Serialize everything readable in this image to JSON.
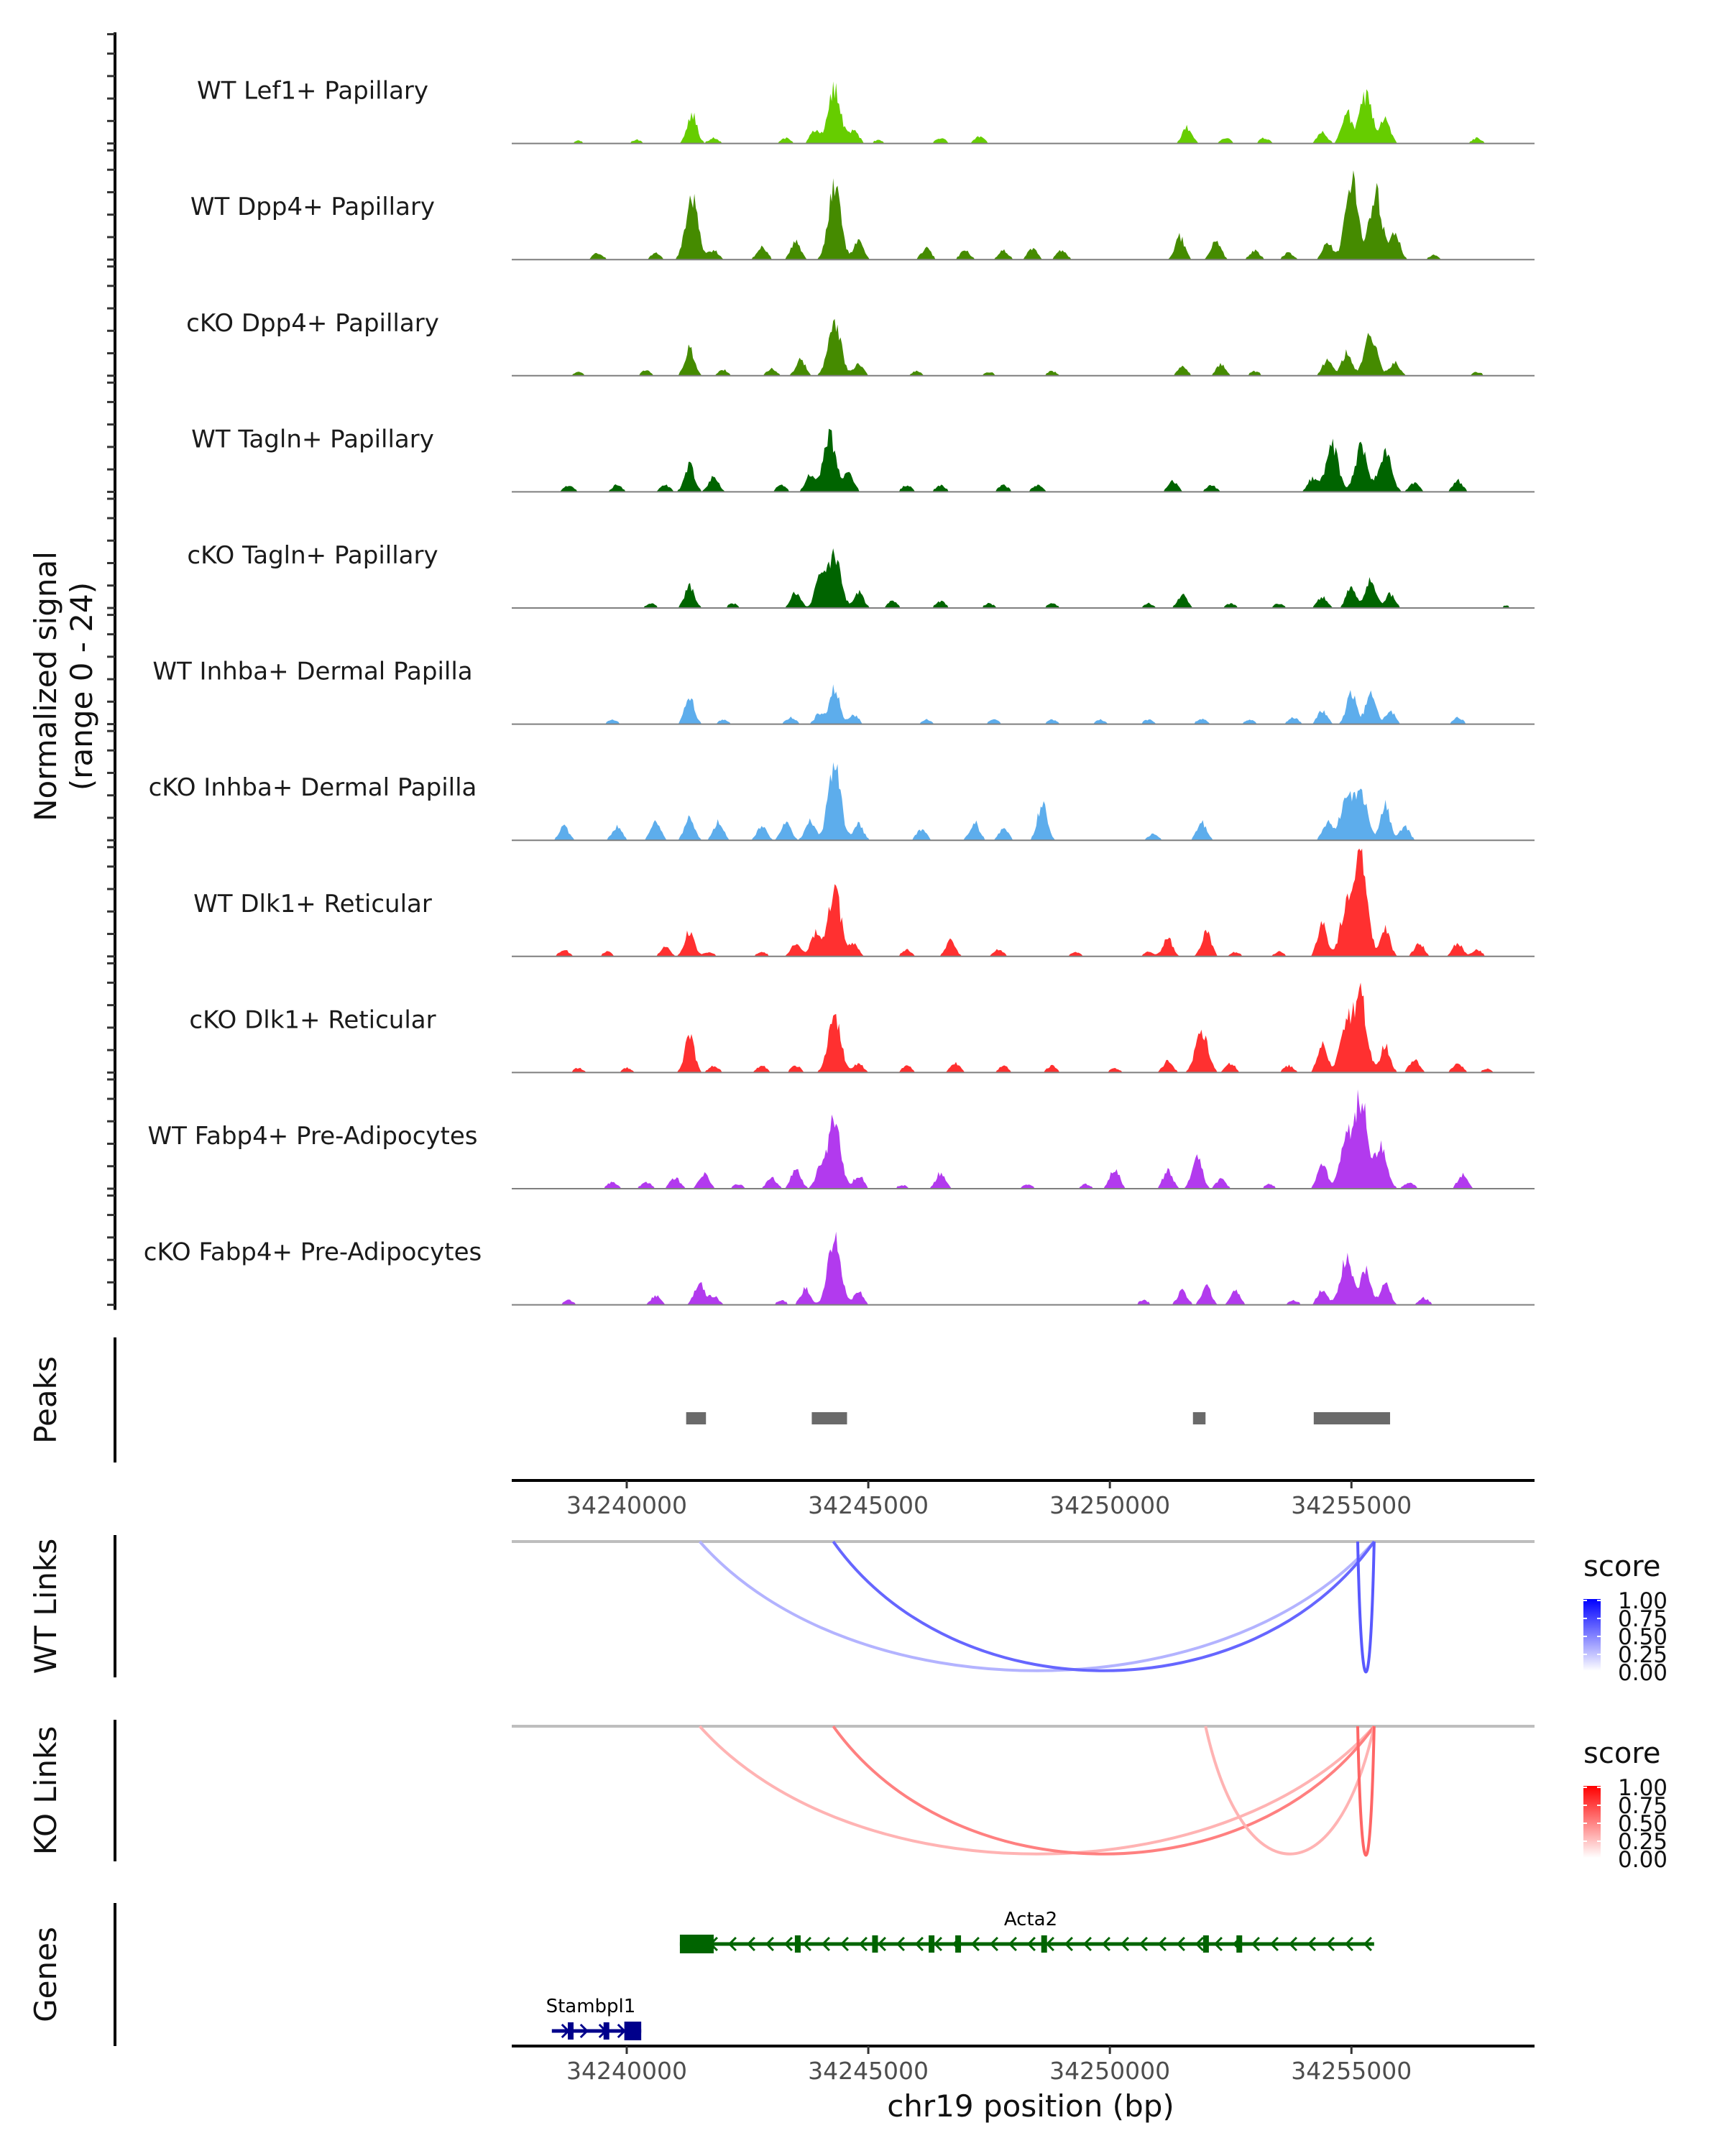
{
  "chart_data": {
    "type": "area",
    "title": "",
    "xlabel": "chr19 position (bp)",
    "ylabel": "Normalized signal\n(range 0 - 24)",
    "ylabel_lines": [
      "Normalized signal",
      "(range 0 - 24)"
    ],
    "xlim": [
      34237620,
      34258790
    ],
    "ylim": [
      0,
      24
    ],
    "x_ticks": [
      34240000,
      34245000,
      34250000,
      34255000
    ],
    "x_tick_labels": [
      "34240000",
      "34245000",
      "34250000",
      "34255000"
    ],
    "grid": false,
    "tracks": [
      {
        "name": "WT Lef1+ Papillary",
        "color": "#66CD00",
        "peaks": [
          [
            34239000,
            0.6
          ],
          [
            34240200,
            0.8
          ],
          [
            34241350,
            6.5
          ],
          [
            34241800,
            1.2
          ],
          [
            34243300,
            1.2
          ],
          [
            34243900,
            3
          ],
          [
            34244300,
            12
          ],
          [
            34244700,
            3
          ],
          [
            34245200,
            0.7
          ],
          [
            34246500,
            1.2
          ],
          [
            34247300,
            1.5
          ],
          [
            34251600,
            3.5
          ],
          [
            34252400,
            1.3
          ],
          [
            34253200,
            1.2
          ],
          [
            34254400,
            2.5
          ],
          [
            34254900,
            7
          ],
          [
            34255300,
            10.5
          ],
          [
            34255700,
            6
          ],
          [
            34257600,
            1.2
          ]
        ]
      },
      {
        "name": "WT Dpp4+ Papillary",
        "color": "#458B00",
        "peaks": [
          [
            34239400,
            1.5
          ],
          [
            34240600,
            1.5
          ],
          [
            34241350,
            13.5
          ],
          [
            34241800,
            2
          ],
          [
            34242800,
            3
          ],
          [
            34243500,
            4
          ],
          [
            34244300,
            16
          ],
          [
            34244800,
            4
          ],
          [
            34246200,
            2.5
          ],
          [
            34247000,
            2
          ],
          [
            34247800,
            2
          ],
          [
            34248400,
            2.5
          ],
          [
            34249000,
            2
          ],
          [
            34251450,
            5
          ],
          [
            34252200,
            4.5
          ],
          [
            34253000,
            2
          ],
          [
            34253700,
            1.5
          ],
          [
            34254500,
            4
          ],
          [
            34255000,
            18
          ],
          [
            34255500,
            15
          ],
          [
            34255900,
            6
          ],
          [
            34256700,
            1
          ]
        ]
      },
      {
        "name": "cKO Dpp4+ Papillary",
        "color": "#458B00",
        "peaks": [
          [
            34239000,
            0.8
          ],
          [
            34240400,
            1.2
          ],
          [
            34241300,
            6
          ],
          [
            34242000,
            1.3
          ],
          [
            34243000,
            1.5
          ],
          [
            34243600,
            3.5
          ],
          [
            34244300,
            12.5
          ],
          [
            34244800,
            2.5
          ],
          [
            34246000,
            1
          ],
          [
            34247500,
            0.8
          ],
          [
            34248800,
            1
          ],
          [
            34251500,
            2
          ],
          [
            34252300,
            2.5
          ],
          [
            34253000,
            1
          ],
          [
            34254500,
            3.5
          ],
          [
            34254900,
            5
          ],
          [
            34255400,
            9.5
          ],
          [
            34255900,
            3
          ],
          [
            34257600,
            0.8
          ]
        ]
      },
      {
        "name": "WT Tagln+ Papillary",
        "color": "#006400",
        "peaks": [
          [
            34238800,
            1.5
          ],
          [
            34239800,
            1.5
          ],
          [
            34240800,
            1.5
          ],
          [
            34241300,
            6
          ],
          [
            34241800,
            3.5
          ],
          [
            34243200,
            1.5
          ],
          [
            34243800,
            4
          ],
          [
            34244200,
            12.5
          ],
          [
            34244600,
            4
          ],
          [
            34245800,
            1.5
          ],
          [
            34246500,
            1.5
          ],
          [
            34247800,
            1.5
          ],
          [
            34248500,
            1.5
          ],
          [
            34251300,
            2.5
          ],
          [
            34252100,
            1.5
          ],
          [
            34254200,
            3
          ],
          [
            34254600,
            10.5
          ],
          [
            34255200,
            9.5
          ],
          [
            34255700,
            9
          ],
          [
            34256300,
            2
          ],
          [
            34257200,
            2.5
          ]
        ]
      },
      {
        "name": "cKO Tagln+ Papillary",
        "color": "#006400",
        "peaks": [
          [
            34240500,
            1
          ],
          [
            34241300,
            5
          ],
          [
            34242200,
            1
          ],
          [
            34243500,
            3.5
          ],
          [
            34244000,
            7
          ],
          [
            34244300,
            12
          ],
          [
            34244800,
            3.5
          ],
          [
            34245500,
            1.5
          ],
          [
            34246500,
            1.5
          ],
          [
            34247500,
            1
          ],
          [
            34248800,
            1
          ],
          [
            34250800,
            1
          ],
          [
            34251500,
            3
          ],
          [
            34252500,
            1
          ],
          [
            34253500,
            1
          ],
          [
            34254400,
            2.5
          ],
          [
            34255000,
            5
          ],
          [
            34255400,
            7
          ],
          [
            34255800,
            3
          ],
          [
            34258200,
            0.5
          ]
        ]
      },
      {
        "name": "WT Inhba+ Dermal Papilla",
        "color": "#5DADEC",
        "peaks": [
          [
            34239700,
            1
          ],
          [
            34241300,
            6
          ],
          [
            34242000,
            1
          ],
          [
            34243400,
            1.5
          ],
          [
            34244000,
            2.5
          ],
          [
            34244300,
            8
          ],
          [
            34244700,
            2
          ],
          [
            34246200,
            1
          ],
          [
            34247600,
            1
          ],
          [
            34248800,
            1
          ],
          [
            34249800,
            1
          ],
          [
            34250800,
            1
          ],
          [
            34251900,
            1.2
          ],
          [
            34252900,
            1
          ],
          [
            34253800,
            1.5
          ],
          [
            34254400,
            3
          ],
          [
            34255000,
            7
          ],
          [
            34255400,
            7.5
          ],
          [
            34255800,
            3
          ],
          [
            34257200,
            1.5
          ]
        ]
      },
      {
        "name": "cKO Inhba+ Dermal Papilla",
        "color": "#5DADEC",
        "peaks": [
          [
            34238700,
            3
          ],
          [
            34239800,
            3
          ],
          [
            34240600,
            4.5
          ],
          [
            34241300,
            5
          ],
          [
            34241900,
            4
          ],
          [
            34242800,
            3
          ],
          [
            34243300,
            4
          ],
          [
            34243800,
            4.5
          ],
          [
            34244300,
            17
          ],
          [
            34244800,
            3.5
          ],
          [
            34246100,
            2.5
          ],
          [
            34247200,
            4
          ],
          [
            34247800,
            2.5
          ],
          [
            34248600,
            8
          ],
          [
            34250900,
            1.5
          ],
          [
            34251900,
            4
          ],
          [
            34254500,
            4
          ],
          [
            34254900,
            9.5
          ],
          [
            34255200,
            10
          ],
          [
            34255700,
            8
          ],
          [
            34256100,
            3
          ]
        ]
      },
      {
        "name": "WT Dlk1+ Reticular",
        "color": "#FF3030",
        "peaks": [
          [
            34238700,
            1.5
          ],
          [
            34239600,
            1
          ],
          [
            34240800,
            2
          ],
          [
            34241300,
            5.5
          ],
          [
            34241700,
            1
          ],
          [
            34242800,
            1
          ],
          [
            34243500,
            3
          ],
          [
            34243900,
            5
          ],
          [
            34244300,
            15
          ],
          [
            34244700,
            2.5
          ],
          [
            34245800,
            1.5
          ],
          [
            34246700,
            3.5
          ],
          [
            34247700,
            1.5
          ],
          [
            34249300,
            1
          ],
          [
            34250800,
            1
          ],
          [
            34251200,
            4
          ],
          [
            34252000,
            5.5
          ],
          [
            34252600,
            1
          ],
          [
            34253500,
            1
          ],
          [
            34254400,
            7
          ],
          [
            34254900,
            11
          ],
          [
            34255200,
            24
          ],
          [
            34255700,
            6
          ],
          [
            34256400,
            3
          ],
          [
            34257200,
            3
          ],
          [
            34257600,
            1.5
          ]
        ]
      },
      {
        "name": "cKO Dlk1+ Reticular",
        "color": "#FF3030",
        "peaks": [
          [
            34239000,
            1
          ],
          [
            34240000,
            1
          ],
          [
            34241300,
            8
          ],
          [
            34241800,
            1.5
          ],
          [
            34242800,
            1.5
          ],
          [
            34243500,
            1.5
          ],
          [
            34244300,
            13
          ],
          [
            34244800,
            2
          ],
          [
            34245800,
            1.5
          ],
          [
            34246800,
            2
          ],
          [
            34247800,
            1.5
          ],
          [
            34248800,
            1.5
          ],
          [
            34250100,
            1
          ],
          [
            34251200,
            2.5
          ],
          [
            34251900,
            9
          ],
          [
            34252500,
            2
          ],
          [
            34253700,
            1.5
          ],
          [
            34254400,
            6.5
          ],
          [
            34254900,
            11
          ],
          [
            34255200,
            16
          ],
          [
            34255700,
            6
          ],
          [
            34256300,
            3
          ],
          [
            34257200,
            2
          ],
          [
            34257800,
            0.8
          ]
        ]
      },
      {
        "name": "WT Fabp4+ Pre-Adipocytes",
        "color": "#B23AEE",
        "peaks": [
          [
            34239700,
            1.5
          ],
          [
            34240400,
            1.5
          ],
          [
            34241000,
            2.5
          ],
          [
            34241600,
            3.5
          ],
          [
            34242300,
            1
          ],
          [
            34243000,
            2.5
          ],
          [
            34243500,
            4.5
          ],
          [
            34244000,
            4
          ],
          [
            34244300,
            15
          ],
          [
            34244800,
            3
          ],
          [
            34245700,
            0.8
          ],
          [
            34246500,
            3.5
          ],
          [
            34248300,
            1
          ],
          [
            34249500,
            1
          ],
          [
            34250100,
            4.5
          ],
          [
            34251200,
            4
          ],
          [
            34251800,
            8
          ],
          [
            34252300,
            2
          ],
          [
            34253300,
            1
          ],
          [
            34254400,
            5.5
          ],
          [
            34254900,
            11
          ],
          [
            34255200,
            19
          ],
          [
            34255600,
            9
          ],
          [
            34256200,
            1.5
          ],
          [
            34257300,
            3
          ]
        ]
      },
      {
        "name": "cKO Fabp4+ Pre-Adipocytes",
        "color": "#B23AEE",
        "peaks": [
          [
            34238800,
            1
          ],
          [
            34240600,
            2
          ],
          [
            34241500,
            5
          ],
          [
            34241800,
            2
          ],
          [
            34243200,
            1
          ],
          [
            34243700,
            3.5
          ],
          [
            34244300,
            15
          ],
          [
            34244800,
            3
          ],
          [
            34250700,
            1
          ],
          [
            34251500,
            3
          ],
          [
            34252000,
            4
          ],
          [
            34252600,
            3
          ],
          [
            34253800,
            1
          ],
          [
            34254400,
            3.5
          ],
          [
            34254900,
            10
          ],
          [
            34255300,
            8
          ],
          [
            34255700,
            5
          ],
          [
            34256500,
            1.5
          ]
        ]
      }
    ],
    "peaks_track": {
      "label": "Peaks",
      "color": "#6A6A6A",
      "regions": [
        [
          34241230,
          34241640
        ],
        [
          34243830,
          34244560
        ],
        [
          34251720,
          34251980
        ],
        [
          34254220,
          34255800
        ]
      ]
    },
    "links": [
      {
        "label": "WT Links",
        "color_low": "#FFFFFF",
        "color_high": "#0000FF",
        "arcs": [
          {
            "start": 34241510,
            "end": 34255470,
            "score": 0.3
          },
          {
            "start": 34244275,
            "end": 34255470,
            "score": 0.6
          },
          {
            "start": 34255130,
            "end": 34255470,
            "score": 0.65
          }
        ]
      },
      {
        "label": "KO Links",
        "color_low": "#FFFFFF",
        "color_high": "#FF0000",
        "arcs": [
          {
            "start": 34241510,
            "end": 34255470,
            "score": 0.3
          },
          {
            "start": 34244275,
            "end": 34255470,
            "score": 0.5
          },
          {
            "start": 34251980,
            "end": 34255470,
            "score": 0.3
          },
          {
            "start": 34255130,
            "end": 34255470,
            "score": 0.6
          }
        ]
      }
    ],
    "legends": [
      {
        "title": "score",
        "ticks": [
          "1.00",
          "0.75",
          "0.50",
          "0.25",
          "0.00"
        ],
        "color_low": "#FFFFFF",
        "color_high": "#0000FF"
      },
      {
        "title": "score",
        "ticks": [
          "1.00",
          "0.75",
          "0.50",
          "0.25",
          "0.00"
        ],
        "color_low": "#FFFFFF",
        "color_high": "#FF0000"
      }
    ],
    "genes": {
      "label": "Genes",
      "items": [
        {
          "name": "Acta2",
          "strand": "-",
          "color": "#006400",
          "start": 34241100,
          "end": 34255470,
          "exons": [
            [
              34241100,
              34241800
            ],
            [
              34243480,
              34243600
            ],
            [
              34245080,
              34245180
            ],
            [
              34246250,
              34246340
            ],
            [
              34246800,
              34246840
            ],
            [
              34248580,
              34248640
            ],
            [
              34251930,
              34252000
            ],
            [
              34252620,
              34252700
            ]
          ]
        },
        {
          "name": "Stambpl1",
          "strand": "+",
          "color": "#00008B",
          "start": 34238450,
          "end": 34240300,
          "exons": [
            [
              34238780,
              34238860
            ],
            [
              34239520,
              34239580
            ],
            [
              34239950,
              34240300
            ]
          ]
        }
      ]
    }
  }
}
